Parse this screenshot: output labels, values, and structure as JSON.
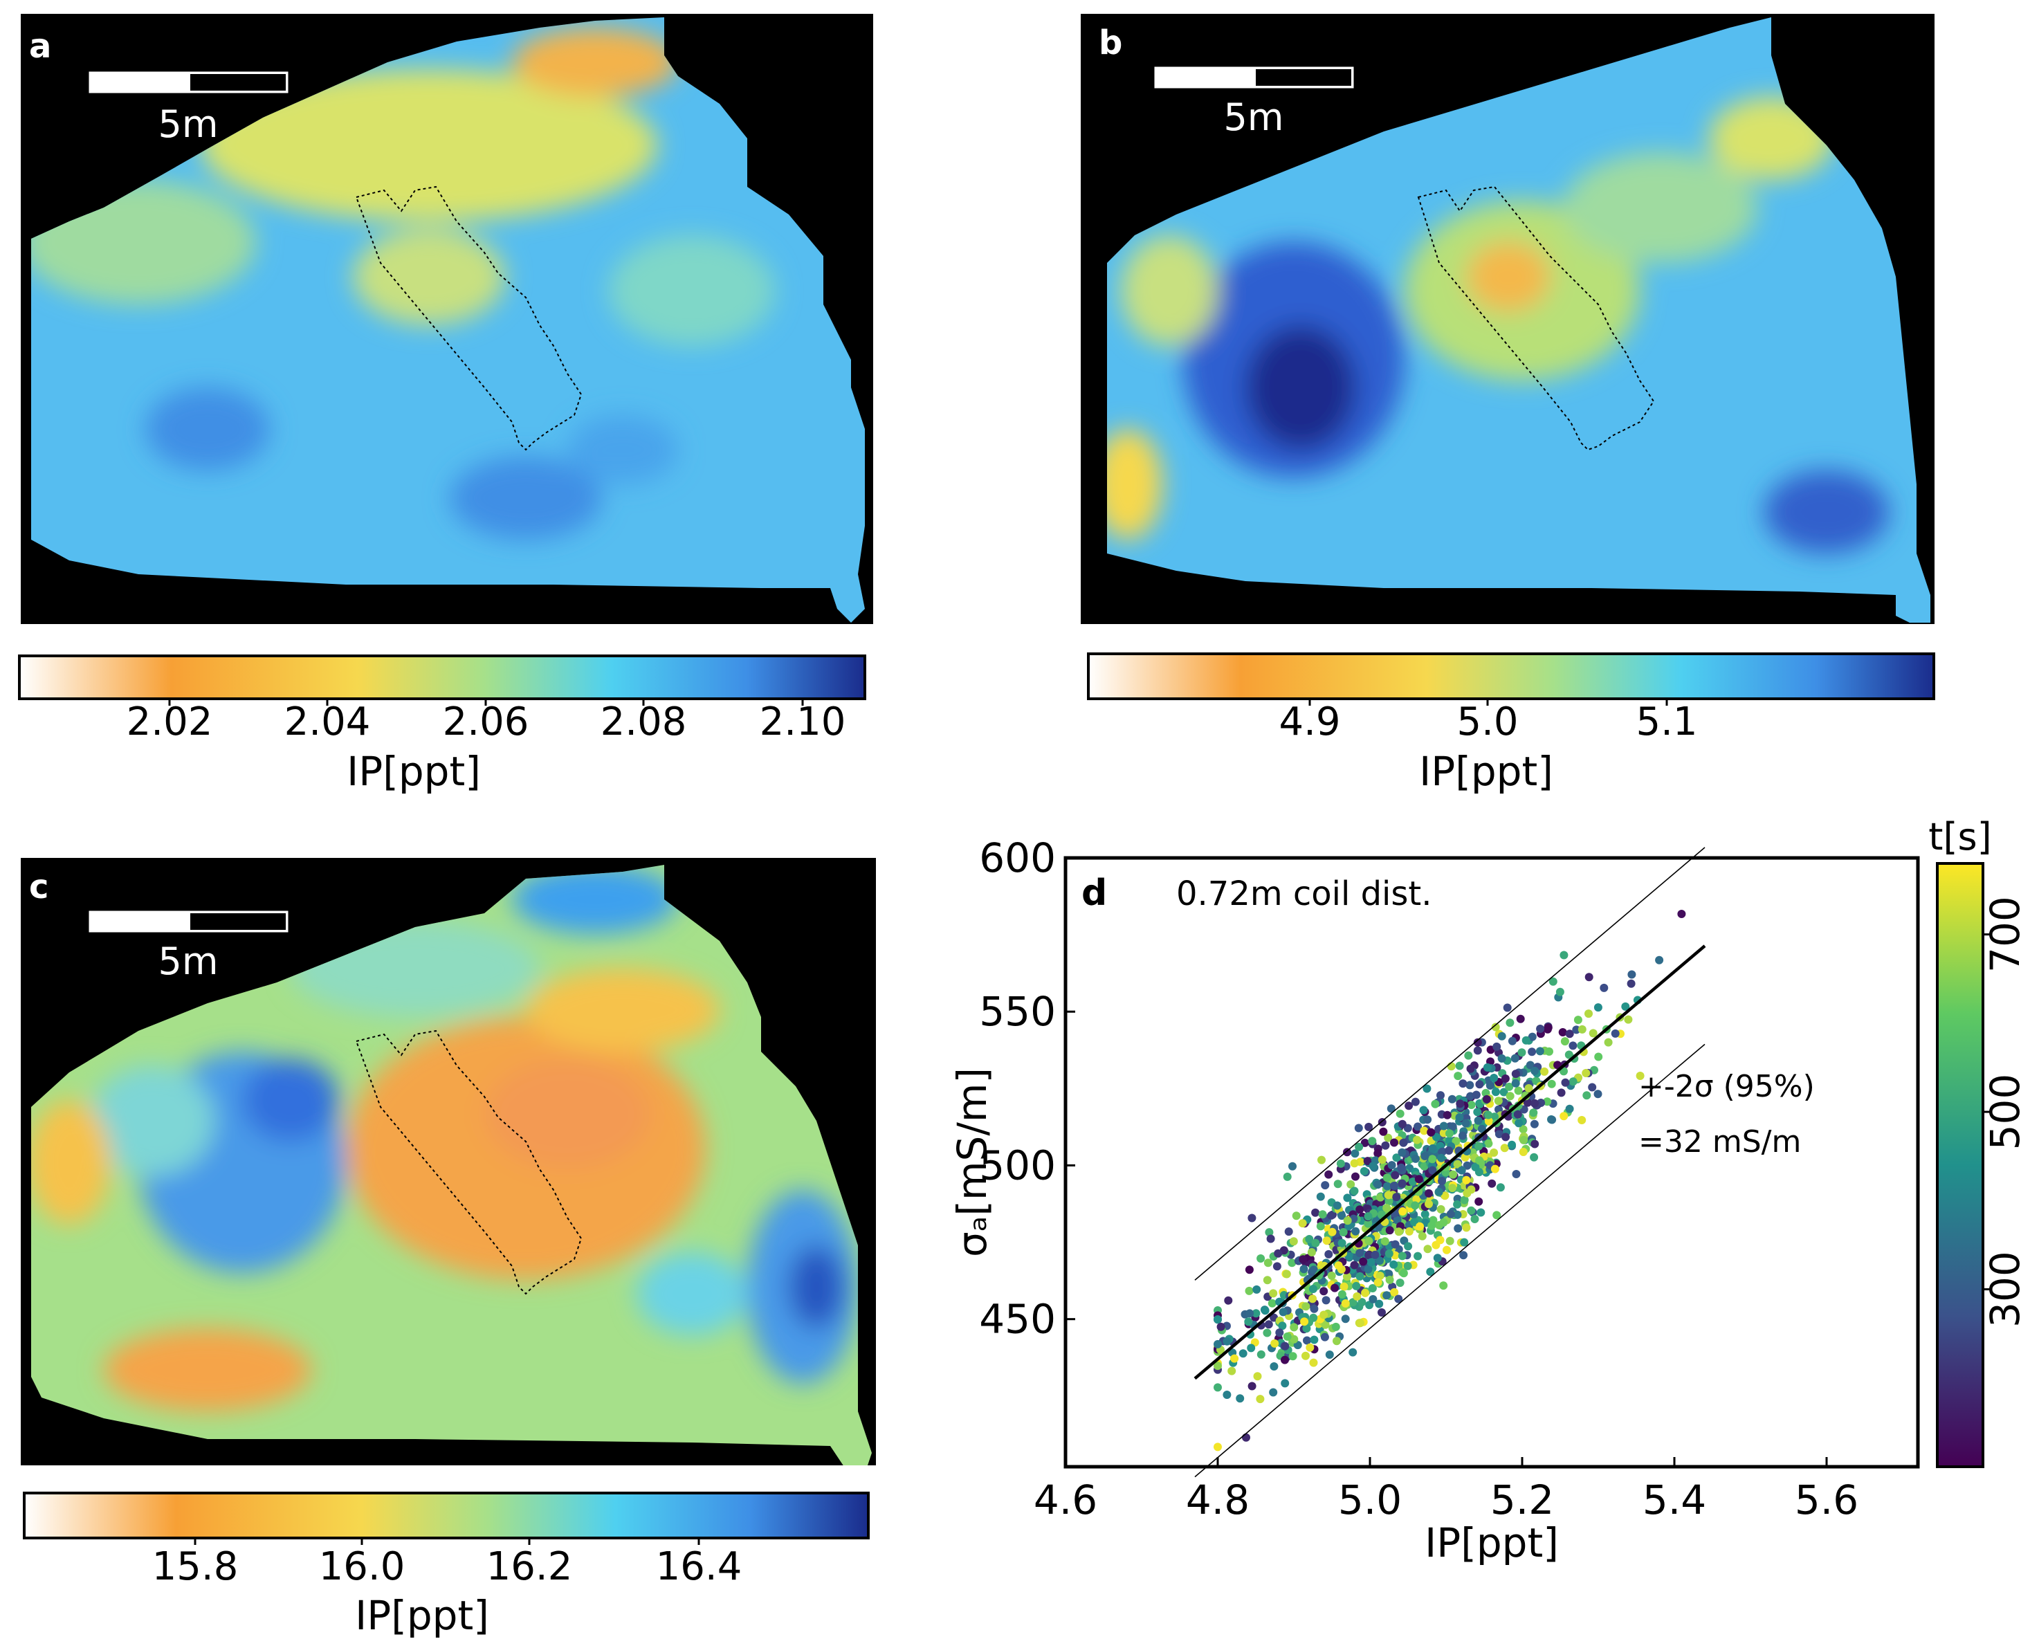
{
  "panels": {
    "a": {
      "letter": "a",
      "scalebar": "5m",
      "colorbar_label": "IP[ppt]",
      "colorbar_ticks": [
        "2.02",
        "2.04",
        "2.06",
        "2.08",
        "2.10"
      ]
    },
    "b": {
      "letter": "b",
      "scalebar": "5m",
      "colorbar_label": "IP[ppt]",
      "colorbar_ticks": [
        "4.9",
        "5.0",
        "5.1"
      ]
    },
    "c": {
      "letter": "c",
      "scalebar": "5m",
      "colorbar_label": "IP[ppt]",
      "colorbar_ticks": [
        "15.8",
        "16.0",
        "16.2",
        "16.4"
      ]
    }
  },
  "colors": {
    "colormap_ip": [
      "#ffffff",
      "#f7a035",
      "#f6d84e",
      "#a6e08a",
      "#4fd0f0",
      "#3e8fe6",
      "#1a2c8c"
    ],
    "colormap_viridis": [
      "#440154",
      "#3b528b",
      "#21918c",
      "#5ec962",
      "#fde725"
    ],
    "map_background": "#000000"
  },
  "chart_data": {
    "type": "scatter",
    "panel_letter": "d",
    "annotation": "0.72m coil dist.",
    "sigma_text": "+-2σ (95%)",
    "sigma_value": "=32 mS/m",
    "xlabel": "IP[ppt]",
    "ylabel": "σₐ[mS/m]",
    "xlim": [
      4.6,
      5.72
    ],
    "ylim": [
      402,
      600
    ],
    "xticks": [
      "4.6",
      "4.8",
      "5.0",
      "5.2",
      "5.4",
      "5.6"
    ],
    "yticks": [
      "450",
      "500",
      "550",
      "600"
    ],
    "regression": {
      "slope": 210,
      "intercept": -571,
      "x_range": [
        4.77,
        5.44
      ],
      "band": 32
    },
    "colorbar": {
      "label": "t[s]",
      "range": [
        100,
        780
      ],
      "ticks": [
        "300",
        "500",
        "700"
      ]
    },
    "point_cloud": {
      "count": 1200,
      "x_center": 5.05,
      "x_spread": 0.11,
      "x_min": 4.8,
      "x_max": 5.44,
      "noise_sd": 13
    }
  }
}
